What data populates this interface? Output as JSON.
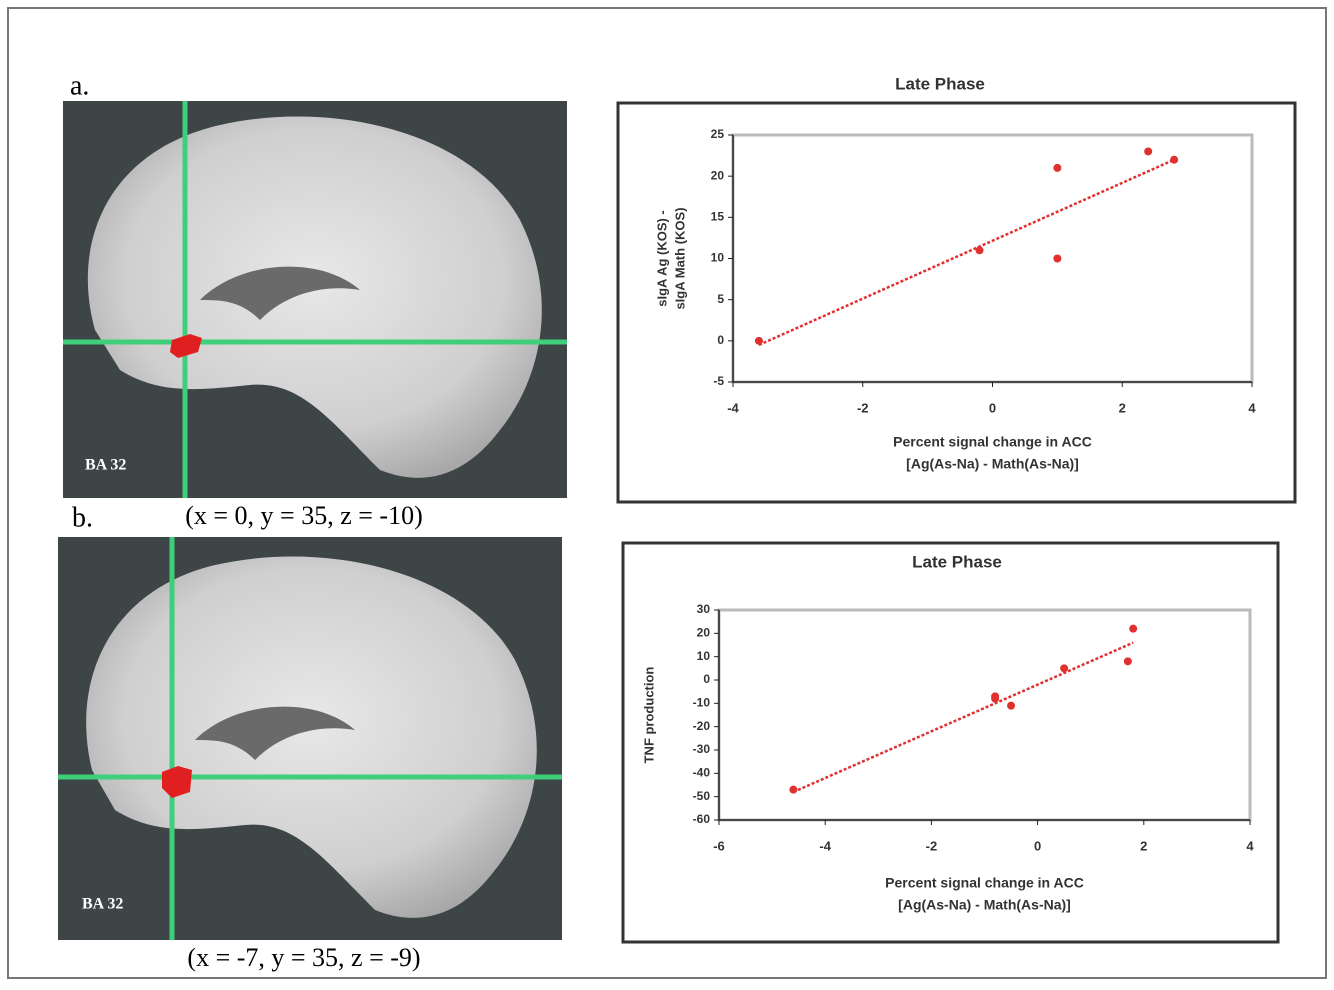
{
  "panels": [
    {
      "label": "a.",
      "region": "BA 32",
      "coords": "(x = 0, y = 35, z = -10)"
    },
    {
      "label": "b.",
      "region": "BA 32",
      "coords": "(x = -7, y = 35, z = -9)"
    }
  ],
  "chart_data": [
    {
      "type": "scatter",
      "title": "Late Phase",
      "x_label": [
        "Percent signal change in ACC",
        "[Ag(As-Na) - Math(As-Na)]"
      ],
      "y_label": [
        "sIgA Ag (KOS) -",
        "sIgA Math (KOS)"
      ],
      "x": [
        -3.6,
        -0.2,
        1,
        1,
        2.4,
        2.8
      ],
      "values": [
        0,
        11,
        21,
        10,
        23,
        22
      ],
      "color": "#e03030",
      "trendline": {
        "x": [
          -3.6,
          2.8
        ],
        "values": [
          -0.5,
          22
        ]
      },
      "xlim": [
        -4,
        4
      ],
      "xticks": [
        -4,
        -2,
        0,
        2,
        4
      ],
      "ylim": [
        -5,
        25
      ],
      "yticks": [
        -5,
        0,
        5,
        10,
        15,
        20,
        25
      ]
    },
    {
      "type": "scatter",
      "title": "Late Phase",
      "x_label": [
        "Percent signal change in ACC",
        "[Ag(As-Na) - Math(As-Na)]"
      ],
      "y_label": [
        "TNF production"
      ],
      "x": [
        -4.6,
        -0.8,
        -0.8,
        -0.5,
        0.5,
        1.7,
        1.8
      ],
      "values": [
        -47,
        -7,
        -8,
        -11,
        5,
        8,
        22
      ],
      "color": "#e03030",
      "trendline": {
        "x": [
          -4.6,
          1.8
        ],
        "values": [
          -48,
          16
        ]
      },
      "xlim": [
        -6,
        4
      ],
      "xticks": [
        -6,
        -4,
        -2,
        0,
        2,
        4
      ],
      "ylim": [
        -60,
        30
      ],
      "yticks": [
        -60,
        -50,
        -40,
        -30,
        -20,
        -10,
        0,
        10,
        20,
        30
      ]
    }
  ]
}
